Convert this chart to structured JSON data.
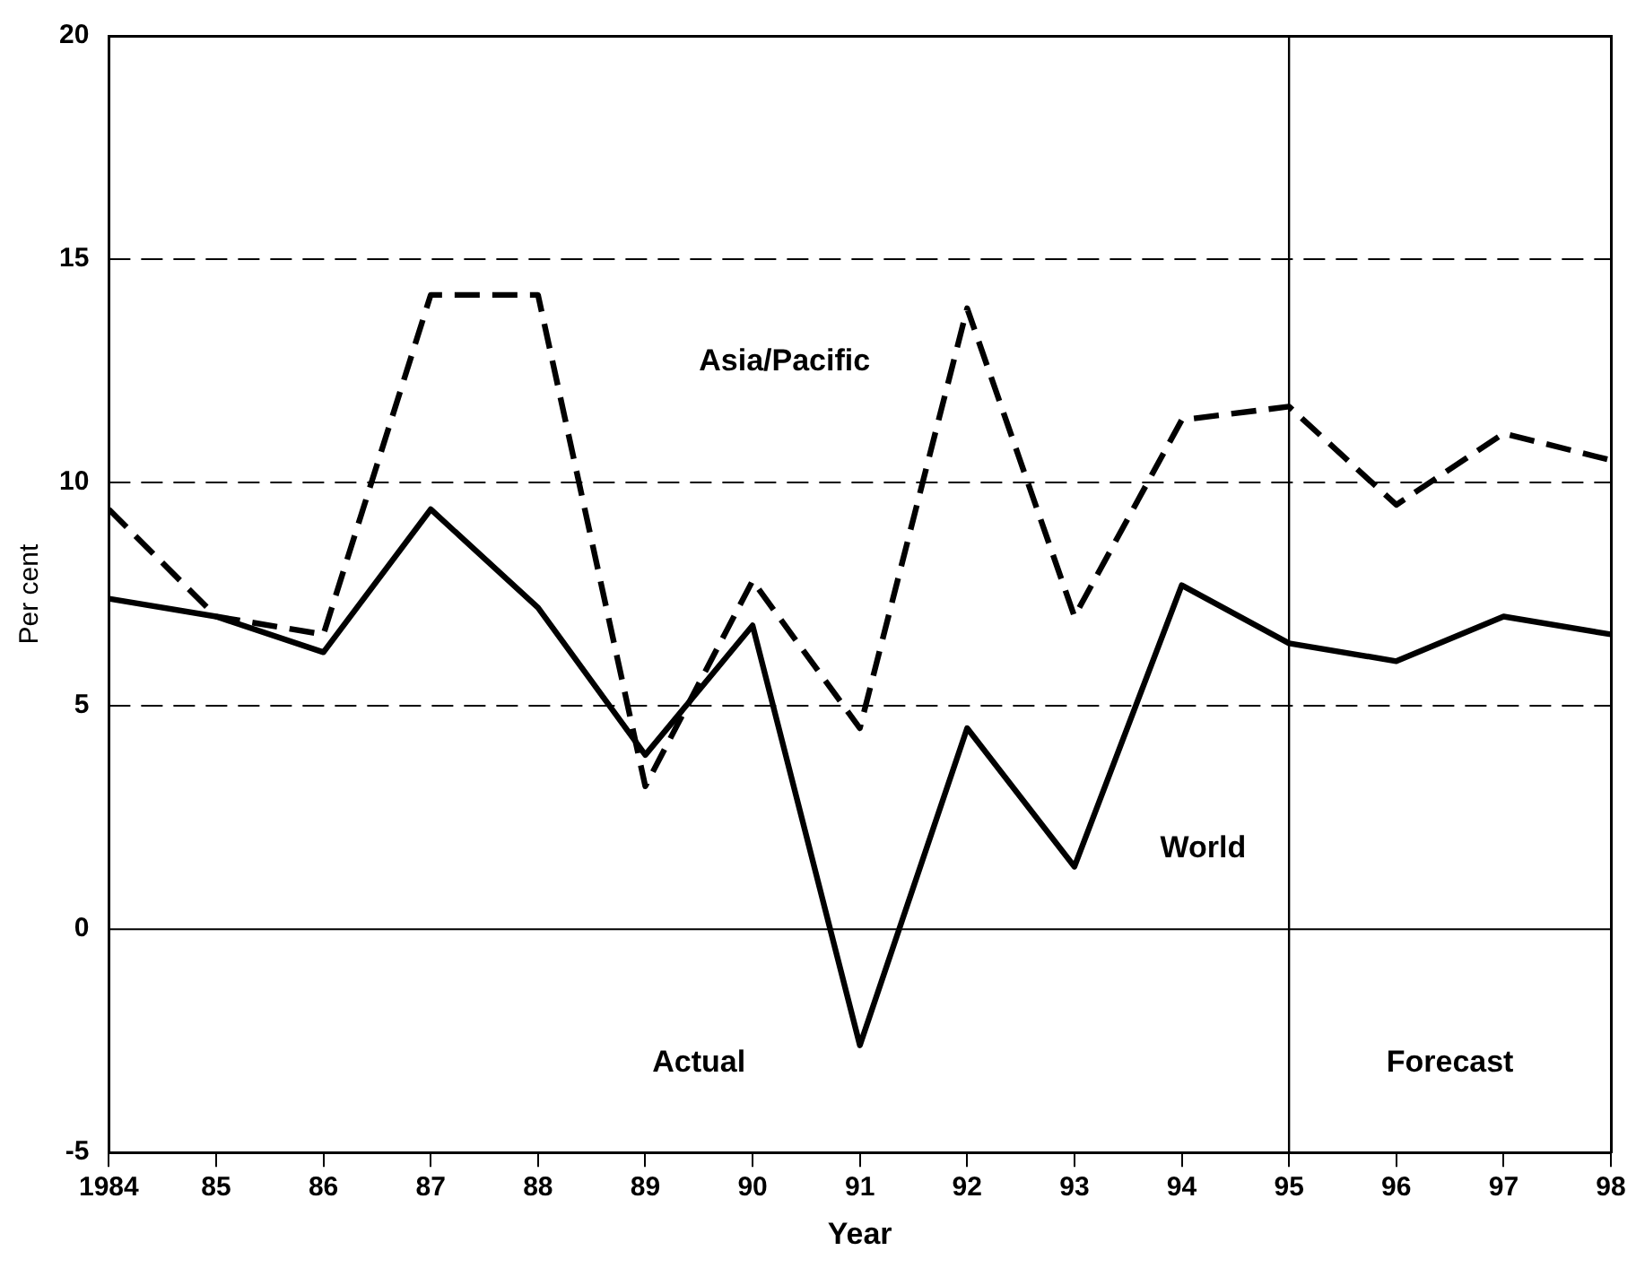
{
  "chart_data": {
    "type": "line",
    "xlabel": "Year",
    "ylabel": "Per cent",
    "x": [
      1984,
      1985,
      1986,
      1987,
      1988,
      1989,
      1990,
      1991,
      1992,
      1993,
      1994,
      1995,
      1996,
      1997,
      1998
    ],
    "series": [
      {
        "name": "World",
        "color": "#000000",
        "line_style": "solid",
        "values": [
          7.4,
          7.0,
          6.2,
          9.4,
          7.2,
          3.9,
          6.8,
          -2.6,
          4.5,
          1.4,
          7.7,
          6.4,
          6.0,
          7.0,
          6.6
        ]
      },
      {
        "name": "Asia/Pacific",
        "color": "#000000",
        "line_style": "dashed",
        "values": [
          9.4,
          7.0,
          6.6,
          14.2,
          14.2,
          3.2,
          7.8,
          4.5,
          13.9,
          7.0,
          11.4,
          11.7,
          9.5,
          11.1,
          10.5
        ]
      }
    ],
    "xlim": [
      1984,
      1998
    ],
    "xticks": [
      1984,
      {
        "value": 1985,
        "label": "85"
      },
      {
        "value": 1986,
        "label": "86"
      },
      {
        "value": 1987,
        "label": "87"
      },
      {
        "value": 1988,
        "label": "88"
      },
      {
        "value": 1989,
        "label": "89"
      },
      {
        "value": 1990,
        "label": "90"
      },
      {
        "value": 1991,
        "label": "91"
      },
      {
        "value": 1992,
        "label": "92"
      },
      {
        "value": 1993,
        "label": "93"
      },
      {
        "value": 1994,
        "label": "94"
      },
      {
        "value": 1995,
        "label": "95"
      },
      {
        "value": 1996,
        "label": "96"
      },
      {
        "value": 1997,
        "label": "97"
      },
      {
        "value": 1998,
        "label": "98"
      }
    ],
    "ylim": [
      -5,
      20
    ],
    "yticks": [
      -5,
      0,
      5,
      10,
      15,
      20
    ],
    "grid": "y",
    "legend": false,
    "marker": "none",
    "ref_lines": [
      {
        "axis": "x",
        "value": 1995,
        "line_style": "solid"
      }
    ],
    "annotations": [
      "Actual",
      "Forecast"
    ]
  }
}
